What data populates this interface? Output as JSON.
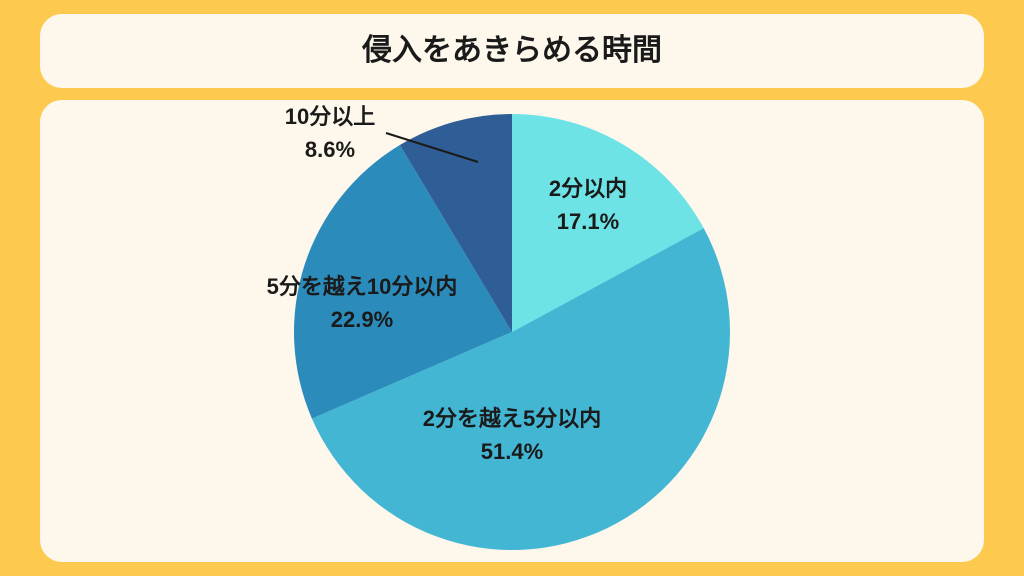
{
  "chart_data": {
    "type": "pie",
    "title": "侵入をあきらめる時間",
    "categories": [
      "2分以内",
      "2分を越え5分以内",
      "5分を越え10分以内",
      "10分以上"
    ],
    "values": [
      17.1,
      51.4,
      22.9,
      8.6
    ],
    "value_labels": [
      "17.1%",
      "51.4%",
      "22.9%",
      "8.6%"
    ],
    "colors": [
      "#6de3e6",
      "#43b6d4",
      "#2b8cbc",
      "#2f5e96"
    ]
  }
}
